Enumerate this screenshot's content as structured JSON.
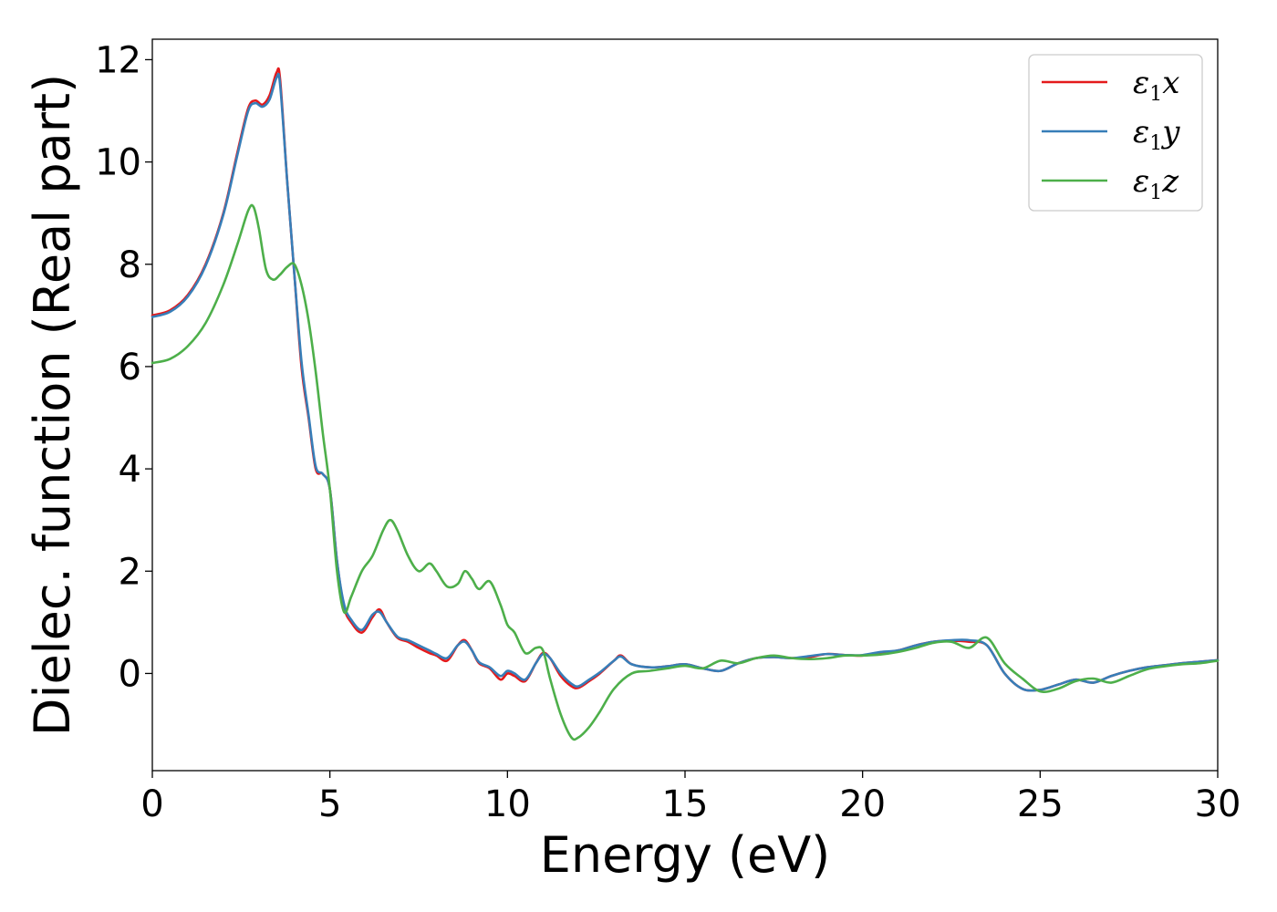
{
  "chart_data": {
    "type": "line",
    "xlabel": "Energy (eV)",
    "ylabel": "Dielec. function (Real part)",
    "xlim": [
      0,
      30
    ],
    "ylim": [
      -1.9,
      12.4
    ],
    "xticks": [
      "0",
      "5",
      "10",
      "15",
      "20",
      "25",
      "30"
    ],
    "yticks": [
      "0",
      "2",
      "4",
      "6",
      "8",
      "10",
      "12"
    ],
    "grid": false,
    "legend_position": "top-right",
    "series": [
      {
        "name": "ε1x",
        "symbol": "ε",
        "sub": "1",
        "axis": "x",
        "color": "#e41a1c",
        "x": [
          0,
          0.5,
          1.0,
          1.5,
          2.0,
          2.4,
          2.7,
          2.9,
          3.1,
          3.3,
          3.5,
          3.6,
          3.8,
          4.0,
          4.2,
          4.4,
          4.6,
          4.8,
          5.0,
          5.2,
          5.4,
          5.6,
          5.9,
          6.2,
          6.4,
          6.6,
          6.9,
          7.2,
          7.5,
          7.8,
          8.0,
          8.3,
          8.6,
          8.8,
          9.0,
          9.2,
          9.5,
          9.8,
          10.0,
          10.2,
          10.5,
          10.8,
          11.0,
          11.2,
          11.5,
          11.8,
          12.0,
          12.3,
          12.6,
          13.0,
          13.2,
          13.5,
          14.0,
          14.5,
          15.0,
          15.5,
          16.0,
          16.5,
          17.0,
          17.5,
          18.0,
          18.5,
          19.0,
          19.5,
          20.0,
          20.5,
          21.0,
          21.5,
          22.0,
          22.5,
          23.0,
          23.5,
          24.0,
          24.5,
          25.0,
          25.5,
          26.0,
          26.5,
          27.0,
          27.5,
          28.0,
          28.5,
          29.0,
          29.5,
          30.0
        ],
        "y": [
          7.0,
          7.1,
          7.4,
          8.0,
          9.0,
          10.2,
          11.05,
          11.2,
          11.12,
          11.3,
          11.75,
          11.6,
          9.6,
          7.8,
          6.0,
          5.0,
          4.0,
          3.9,
          3.6,
          2.2,
          1.3,
          1.0,
          0.8,
          1.1,
          1.25,
          1.0,
          0.7,
          0.62,
          0.5,
          0.4,
          0.35,
          0.25,
          0.55,
          0.65,
          0.45,
          0.2,
          0.1,
          -0.12,
          0.0,
          -0.05,
          -0.15,
          0.2,
          0.4,
          0.3,
          -0.05,
          -0.25,
          -0.28,
          -0.15,
          0.0,
          0.25,
          0.35,
          0.18,
          0.12,
          0.14,
          0.18,
          0.1,
          0.05,
          0.2,
          0.3,
          0.32,
          0.3,
          0.32,
          0.38,
          0.36,
          0.35,
          0.4,
          0.45,
          0.55,
          0.62,
          0.64,
          0.62,
          0.55,
          0.0,
          -0.3,
          -0.32,
          -0.22,
          -0.12,
          -0.18,
          -0.05,
          0.05,
          0.12,
          0.16,
          0.2,
          0.23,
          0.26
        ]
      },
      {
        "name": "ε1y",
        "symbol": "ε",
        "sub": "1",
        "axis": "y",
        "color": "#377eb8",
        "x": [
          0,
          0.5,
          1.0,
          1.5,
          2.0,
          2.4,
          2.7,
          2.9,
          3.1,
          3.3,
          3.5,
          3.6,
          3.8,
          4.0,
          4.2,
          4.4,
          4.6,
          4.8,
          5.0,
          5.2,
          5.4,
          5.6,
          5.9,
          6.2,
          6.4,
          6.6,
          6.9,
          7.2,
          7.5,
          7.8,
          8.0,
          8.3,
          8.6,
          8.8,
          9.0,
          9.2,
          9.5,
          9.8,
          10.0,
          10.2,
          10.5,
          10.8,
          11.0,
          11.2,
          11.5,
          11.8,
          12.0,
          12.3,
          12.6,
          13.0,
          13.2,
          13.5,
          14.0,
          14.5,
          15.0,
          15.5,
          16.0,
          16.5,
          17.0,
          17.5,
          18.0,
          18.5,
          19.0,
          19.5,
          20.0,
          20.5,
          21.0,
          21.5,
          22.0,
          22.5,
          23.0,
          23.5,
          24.0,
          24.5,
          25.0,
          25.5,
          26.0,
          26.5,
          27.0,
          27.5,
          28.0,
          28.5,
          29.0,
          29.5,
          30.0
        ],
        "y": [
          6.97,
          7.07,
          7.37,
          7.97,
          8.97,
          10.15,
          11.0,
          11.15,
          11.08,
          11.22,
          11.65,
          11.5,
          9.6,
          7.8,
          6.1,
          5.05,
          4.05,
          3.9,
          3.6,
          2.2,
          1.35,
          1.05,
          0.85,
          1.15,
          1.2,
          1.0,
          0.72,
          0.65,
          0.55,
          0.45,
          0.38,
          0.3,
          0.55,
          0.62,
          0.45,
          0.22,
          0.12,
          -0.05,
          0.05,
          0.0,
          -0.12,
          0.2,
          0.38,
          0.3,
          0.0,
          -0.2,
          -0.25,
          -0.12,
          0.02,
          0.25,
          0.33,
          0.18,
          0.12,
          0.14,
          0.18,
          0.1,
          0.05,
          0.2,
          0.3,
          0.32,
          0.3,
          0.34,
          0.38,
          0.36,
          0.36,
          0.42,
          0.45,
          0.55,
          0.62,
          0.65,
          0.65,
          0.55,
          0.0,
          -0.3,
          -0.32,
          -0.22,
          -0.12,
          -0.18,
          -0.05,
          0.05,
          0.12,
          0.16,
          0.2,
          0.23,
          0.26
        ]
      },
      {
        "name": "ε1z",
        "symbol": "ε",
        "sub": "1",
        "axis": "z",
        "color": "#4daf4a",
        "x": [
          0,
          0.5,
          1.0,
          1.5,
          2.0,
          2.4,
          2.7,
          2.85,
          3.0,
          3.2,
          3.4,
          3.6,
          3.8,
          4.0,
          4.2,
          4.4,
          4.6,
          4.8,
          5.0,
          5.2,
          5.4,
          5.6,
          5.9,
          6.2,
          6.5,
          6.7,
          6.9,
          7.2,
          7.5,
          7.8,
          8.0,
          8.3,
          8.6,
          8.8,
          9.0,
          9.2,
          9.5,
          9.8,
          10.0,
          10.2,
          10.5,
          10.8,
          11.0,
          11.2,
          11.5,
          11.8,
          12.0,
          12.3,
          12.6,
          13.0,
          13.5,
          14.0,
          14.5,
          15.0,
          15.5,
          16.0,
          16.5,
          17.0,
          17.5,
          18.0,
          18.5,
          19.0,
          19.5,
          20.0,
          20.5,
          21.0,
          21.5,
          22.0,
          22.5,
          23.0,
          23.5,
          24.0,
          24.5,
          25.0,
          25.5,
          26.0,
          26.5,
          27.0,
          27.5,
          28.0,
          28.5,
          29.0,
          29.5,
          30.0
        ],
        "y": [
          6.07,
          6.15,
          6.4,
          6.85,
          7.6,
          8.4,
          9.05,
          9.12,
          8.7,
          7.9,
          7.7,
          7.8,
          7.95,
          8.0,
          7.6,
          6.9,
          5.9,
          4.7,
          3.6,
          2.0,
          1.2,
          1.5,
          2.0,
          2.3,
          2.8,
          3.0,
          2.8,
          2.3,
          2.0,
          2.15,
          2.0,
          1.7,
          1.75,
          2.0,
          1.85,
          1.65,
          1.8,
          1.35,
          0.95,
          0.8,
          0.4,
          0.5,
          0.45,
          -0.1,
          -0.8,
          -1.25,
          -1.25,
          -1.05,
          -0.75,
          -0.3,
          0.0,
          0.05,
          0.1,
          0.15,
          0.1,
          0.25,
          0.2,
          0.3,
          0.35,
          0.3,
          0.28,
          0.3,
          0.35,
          0.35,
          0.37,
          0.42,
          0.5,
          0.6,
          0.62,
          0.5,
          0.7,
          0.2,
          -0.1,
          -0.35,
          -0.3,
          -0.15,
          -0.1,
          -0.18,
          -0.05,
          0.08,
          0.14,
          0.18,
          0.2,
          0.25
        ]
      }
    ]
  }
}
